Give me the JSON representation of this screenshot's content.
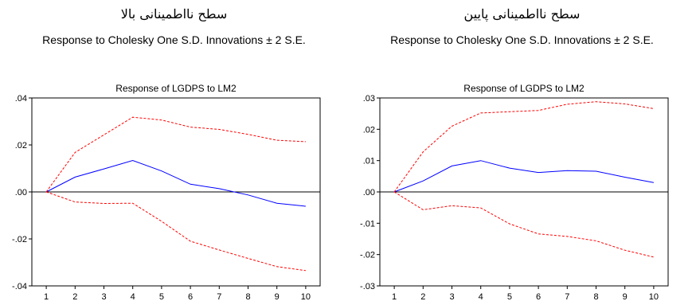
{
  "panels": [
    {
      "heading_fa": "سطح نااطمینانی بالا",
      "heading_en": "Response to Cholesky One S.D. Innovations ± 2 S.E."
    },
    {
      "heading_fa": "سطح نااطمینانی پایین",
      "heading_en": "Response to Cholesky One S.D. Innovations ± 2 S.E."
    }
  ],
  "colors": {
    "response": "#0000ff",
    "bands": "#ff0000",
    "zero_line": "#000000"
  },
  "chart_data": [
    {
      "type": "line",
      "title": "Response of LGDPS to LM2",
      "x": [
        1,
        2,
        3,
        4,
        5,
        6,
        7,
        8,
        9,
        10
      ],
      "xlim": [
        0.5,
        10.5
      ],
      "ylim": [
        -0.04,
        0.04
      ],
      "y_ticks": [
        0.04,
        0.02,
        0.0,
        -0.02,
        -0.04
      ],
      "y_tick_labels": [
        ".04",
        ".02",
        ".00",
        "-.02",
        "-.04"
      ],
      "series": [
        {
          "role": "response",
          "values": [
            0.0,
            0.0063,
            0.0098,
            0.0134,
            0.0089,
            0.0033,
            0.0014,
            -0.0013,
            -0.0048,
            -0.0061
          ]
        },
        {
          "role": "upper",
          "values": [
            0.0,
            0.0168,
            0.0243,
            0.0318,
            0.0306,
            0.0276,
            0.0266,
            0.0245,
            0.022,
            0.0214
          ]
        },
        {
          "role": "lower",
          "values": [
            0.0,
            -0.0043,
            -0.0049,
            -0.0048,
            -0.0125,
            -0.021,
            -0.0247,
            -0.0283,
            -0.0318,
            -0.0335
          ]
        }
      ],
      "grid": false
    },
    {
      "type": "line",
      "title": "Response of LGDPS to LM2",
      "x": [
        1,
        2,
        3,
        4,
        5,
        6,
        7,
        8,
        9,
        10
      ],
      "xlim": [
        0.5,
        10.5
      ],
      "ylim": [
        -0.03,
        0.03
      ],
      "y_ticks": [
        0.03,
        0.02,
        0.01,
        0.0,
        -0.01,
        -0.02,
        -0.03
      ],
      "y_tick_labels": [
        ".03",
        ".02",
        ".01",
        ".00",
        "-.01",
        "-.02",
        "-.03"
      ],
      "series": [
        {
          "role": "response",
          "values": [
            0.0,
            0.0035,
            0.0083,
            0.01,
            0.0076,
            0.0062,
            0.0068,
            0.0066,
            0.0047,
            0.003
          ]
        },
        {
          "role": "upper",
          "values": [
            0.0,
            0.0128,
            0.021,
            0.0252,
            0.0256,
            0.026,
            0.028,
            0.0288,
            0.0281,
            0.0266
          ]
        },
        {
          "role": "lower",
          "values": [
            0.0,
            -0.0057,
            -0.0044,
            -0.0051,
            -0.0102,
            -0.0134,
            -0.0142,
            -0.0156,
            -0.0186,
            -0.0208
          ]
        }
      ],
      "grid": false
    }
  ]
}
